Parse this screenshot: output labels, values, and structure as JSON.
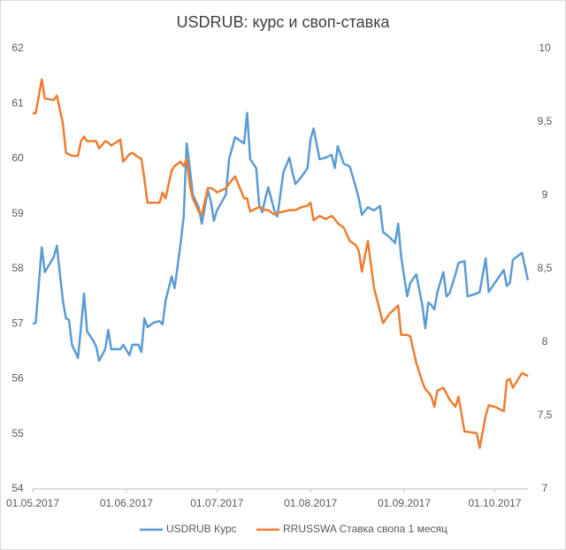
{
  "chart_data": {
    "type": "line",
    "title": "USDRUB: курс и своп-ставка",
    "x": [
      "01.05.2017",
      "02.05.2017",
      "04.05.2017",
      "05.05.2017",
      "08.05.2017",
      "09.05.2017",
      "11.05.2017",
      "12.05.2017",
      "13.05.2017",
      "14.05.2017",
      "16.05.2017",
      "17.05.2017",
      "18.05.2017",
      "19.05.2017",
      "21.05.2017",
      "22.05.2017",
      "23.05.2017",
      "25.05.2017",
      "26.05.2017",
      "27.05.2017",
      "30.05.2017",
      "31.05.2017",
      "02.06.2017",
      "03.06.2017",
      "05.06.2017",
      "06.06.2017",
      "07.06.2017",
      "08.06.2017",
      "10.06.2017",
      "12.06.2017",
      "13.06.2017",
      "14.06.2017",
      "16.06.2017",
      "17.06.2017",
      "19.06.2017",
      "20.06.2017",
      "21.06.2017",
      "22.06.2017",
      "23.06.2017",
      "25.06.2017",
      "26.06.2017",
      "28.06.2017",
      "29.06.2017",
      "30.06.2017",
      "01.07.2017",
      "04.07.2017",
      "05.07.2017",
      "07.07.2017",
      "10.07.2017",
      "11.07.2017",
      "12.07.2017",
      "14.07.2017",
      "15.07.2017",
      "16.07.2017",
      "17.07.2017",
      "18.07.2017",
      "20.07.2017",
      "21.07.2017",
      "23.07.2017",
      "25.07.2017",
      "26.07.2017",
      "27.07.2017",
      "29.07.2017",
      "31.07.2017",
      "01.08.2017",
      "02.08.2017",
      "04.08.2017",
      "06.08.2017",
      "08.08.2017",
      "09.08.2017",
      "10.08.2017",
      "12.08.2017",
      "14.08.2017",
      "16.08.2017",
      "17.08.2017",
      "18.08.2017",
      "20.08.2017",
      "22.08.2017",
      "24.08.2017",
      "25.08.2017",
      "27.08.2017",
      "29.08.2017",
      "30.08.2017",
      "31.08.2017",
      "02.09.2017",
      "03.09.2017",
      "05.09.2017",
      "07.09.2017",
      "08.09.2017",
      "09.09.2017",
      "10.09.2017",
      "11.09.2017",
      "12.09.2017",
      "14.09.2017",
      "15.09.2017",
      "16.09.2017",
      "18.09.2017",
      "19.09.2017",
      "21.09.2017",
      "22.09.2017",
      "25.09.2017",
      "26.09.2017",
      "28.09.2017",
      "29.09.2017",
      "01.10.2017",
      "04.10.2017",
      "05.10.2017",
      "06.10.2017",
      "07.10.2017",
      "10.10.2017",
      "12.10.2017"
    ],
    "xlim": [
      "01.05.2017",
      "12.10.2017"
    ],
    "xticks": [
      "01.05.2017",
      "01.06.2017",
      "01.07.2017",
      "01.08.2017",
      "01.09.2017",
      "01.10.2017"
    ],
    "ylim": [
      54,
      62
    ],
    "yticks": [
      54,
      55,
      56,
      57,
      58,
      59,
      60,
      61,
      62
    ],
    "y2lim": [
      7,
      10
    ],
    "y2ticks": [
      7,
      {
        "value": 7.5,
        "label": "7,5"
      },
      8,
      {
        "value": 8.5,
        "label": "8,5"
      },
      9,
      {
        "value": 9.5,
        "label": "9,5"
      },
      10
    ],
    "legend": "bottom",
    "series": [
      {
        "name": "USDRUB Курс",
        "color": "#5b9bd5",
        "values": [
          57.0,
          57.02,
          58.39,
          57.94,
          58.22,
          58.42,
          57.42,
          57.1,
          57.07,
          56.62,
          56.38,
          56.94,
          57.55,
          56.86,
          56.7,
          56.59,
          56.33,
          56.54,
          56.89,
          56.54,
          56.54,
          56.62,
          56.43,
          56.62,
          56.62,
          56.49,
          57.1,
          56.94,
          57.02,
          57.05,
          56.99,
          57.42,
          57.86,
          57.65,
          58.47,
          58.95,
          60.28,
          59.83,
          59.35,
          59.11,
          58.82,
          59.43,
          59.22,
          58.87,
          59.06,
          59.35,
          59.99,
          60.39,
          60.28,
          60.83,
          59.99,
          59.83,
          59.16,
          59.03,
          59.27,
          59.48,
          59.06,
          58.95,
          59.75,
          60.02,
          59.75,
          59.54,
          59.67,
          59.83,
          60.35,
          60.55,
          59.99,
          60.02,
          60.07,
          59.83,
          60.23,
          59.91,
          59.86,
          59.48,
          59.27,
          58.98,
          59.12,
          59.06,
          59.14,
          58.67,
          58.58,
          58.47,
          58.82,
          58.22,
          57.5,
          57.74,
          57.9,
          57.34,
          56.92,
          57.39,
          57.34,
          57.26,
          57.58,
          57.94,
          57.5,
          57.55,
          57.9,
          58.11,
          58.14,
          57.5,
          57.55,
          57.58,
          58.19,
          57.58,
          57.74,
          57.98,
          57.69,
          57.74,
          58.16,
          58.29,
          57.79
        ]
      },
      {
        "name": "RRUSSWA Ставка свопа 1 месяц",
        "color": "#ed7d31",
        "axis": "y2",
        "values": [
          9.56,
          9.56,
          9.79,
          9.66,
          9.65,
          9.68,
          9.49,
          9.29,
          9.28,
          9.27,
          9.27,
          9.37,
          9.4,
          9.37,
          9.37,
          9.37,
          9.32,
          9.37,
          9.36,
          9.34,
          9.38,
          9.23,
          9.28,
          9.29,
          9.26,
          9.25,
          9.11,
          8.95,
          8.95,
          8.95,
          9.02,
          8.98,
          9.17,
          9.2,
          9.23,
          9.2,
          9.25,
          9.07,
          8.98,
          8.89,
          8.87,
          9.05,
          9.05,
          9.04,
          9.02,
          9.05,
          9.08,
          9.13,
          8.98,
          8.98,
          8.89,
          8.91,
          8.92,
          8.91,
          8.9,
          8.9,
          8.87,
          8.88,
          8.89,
          8.9,
          8.9,
          8.9,
          8.92,
          8.93,
          8.95,
          8.83,
          8.86,
          8.84,
          8.86,
          8.84,
          8.81,
          8.78,
          8.69,
          8.66,
          8.62,
          8.48,
          8.69,
          8.37,
          8.21,
          8.13,
          8.19,
          8.23,
          8.25,
          8.05,
          8.05,
          8.04,
          7.86,
          7.73,
          7.68,
          7.66,
          7.63,
          7.56,
          7.67,
          7.69,
          7.65,
          7.61,
          7.56,
          7.63,
          7.39,
          7.39,
          7.38,
          7.28,
          7.5,
          7.57,
          7.56,
          7.53,
          7.74,
          7.75,
          7.69,
          7.79,
          7.77
        ]
      }
    ]
  }
}
